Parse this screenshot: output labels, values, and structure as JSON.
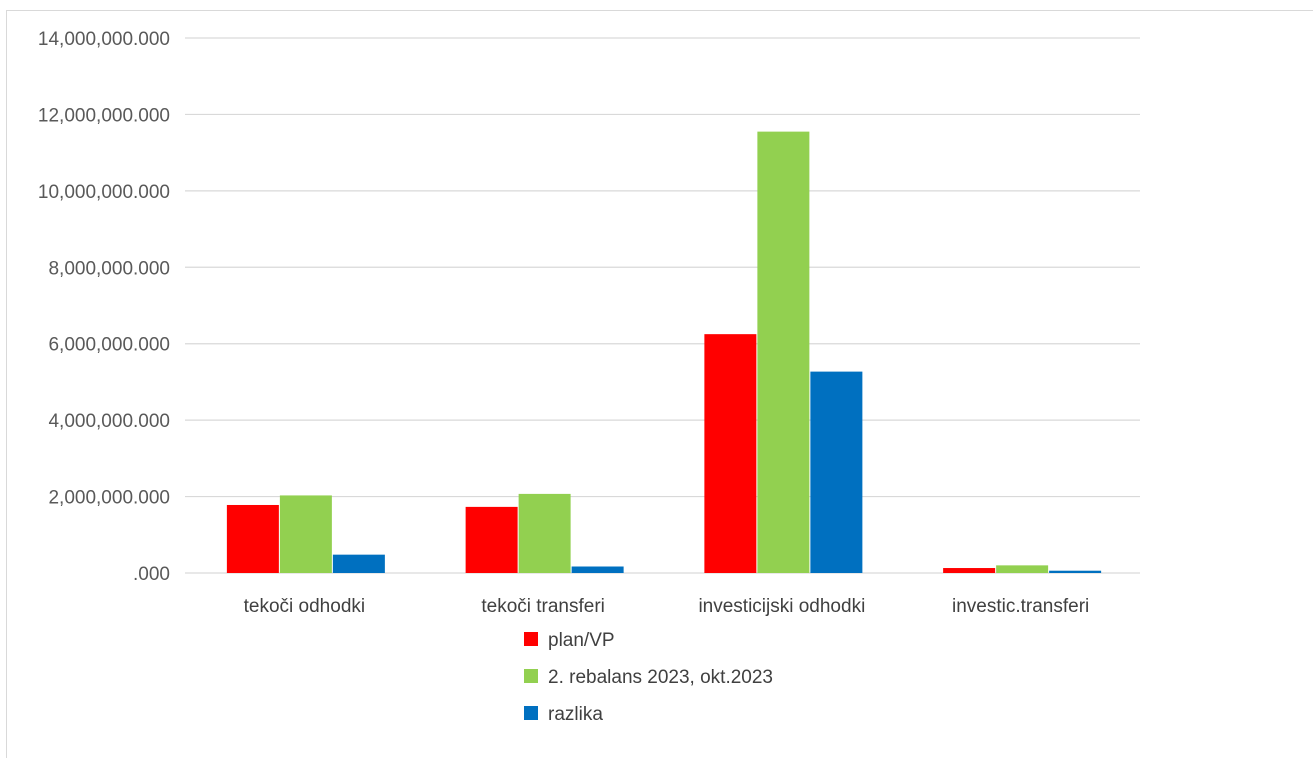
{
  "chart_data": {
    "type": "bar",
    "categories": [
      "tekoči odhodki",
      "tekoči transferi",
      "investicijski odhodki",
      "investic.transferi"
    ],
    "series": [
      {
        "name": "plan/VP",
        "color": "#ff0000",
        "values": [
          1780000000,
          1730000000,
          6250000000,
          130000000
        ]
      },
      {
        "name": "2. rebalans 2023, okt.2023",
        "color": "#92d050",
        "values": [
          2030000000,
          2070000000,
          11550000000,
          200000000
        ]
      },
      {
        "name": "razlika",
        "color": "#0070c0",
        "values": [
          480000000,
          170000000,
          5270000000,
          60000000
        ]
      }
    ],
    "yticks": [
      {
        "value": 14000000000,
        "label": "14,000,000.000"
      },
      {
        "value": 12000000000,
        "label": "12,000,000.000"
      },
      {
        "value": 10000000000,
        "label": "10,000,000.000"
      },
      {
        "value": 8000000000,
        "label": "8,000,000.000"
      },
      {
        "value": 6000000000,
        "label": "6,000,000.000"
      },
      {
        "value": 4000000000,
        "label": "4,000,000.000"
      },
      {
        "value": 2000000000,
        "label": "2,000,000.000"
      },
      {
        "value": 0,
        "label": ".000"
      }
    ],
    "ylim": [
      0,
      14000000000
    ],
    "grid": true,
    "legend_position": "bottom",
    "title": "",
    "xlabel": "",
    "ylabel": ""
  }
}
